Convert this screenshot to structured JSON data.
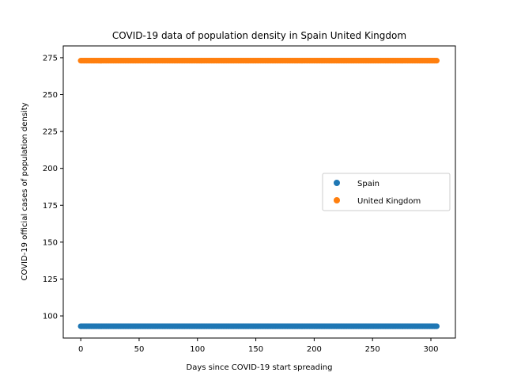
{
  "chart_data": {
    "type": "scatter",
    "title": "COVID-19 data of population density in Spain United Kingdom",
    "xlabel": "Days since COVID-19 start spreading",
    "ylabel": "COVID-19 official cases of population density",
    "xlim": [
      -15,
      321
    ],
    "ylim": [
      85,
      283
    ],
    "xticks": [
      0,
      50,
      100,
      150,
      200,
      250,
      300
    ],
    "yticks": [
      100,
      125,
      150,
      175,
      200,
      225,
      250,
      275
    ],
    "x_range": [
      0,
      305
    ],
    "grid": false,
    "legend_position": "center-right",
    "series": [
      {
        "name": "Spain",
        "value": 93,
        "color": "#1f77b4"
      },
      {
        "name": "United Kingdom",
        "value": 273,
        "color": "#ff7f0e"
      }
    ]
  }
}
